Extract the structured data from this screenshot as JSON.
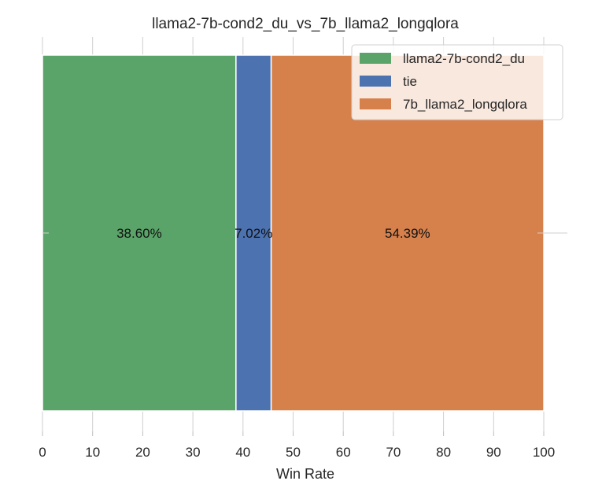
{
  "chart_data": {
    "type": "bar",
    "orientation": "horizontal-stacked",
    "title": "llama2-7b-cond2_du_vs_7b_llama2_longqlora",
    "xlabel": "Win Rate",
    "ylabel": "",
    "xlim": [
      0,
      100
    ],
    "xticks": [
      "0",
      "10",
      "20",
      "30",
      "40",
      "50",
      "60",
      "70",
      "80",
      "90",
      "100"
    ],
    "grid": true,
    "legend_position": "top-right",
    "series": [
      {
        "name": "llama2-7b-cond2_du",
        "value": 38.6,
        "label": "38.60%",
        "color": "#5aa469"
      },
      {
        "name": "tie",
        "value": 7.02,
        "label": "7.02%",
        "color": "#4c72b0"
      },
      {
        "name": "7b_llama2_longqlora",
        "value": 54.39,
        "label": "54.39%",
        "color": "#d6804c"
      }
    ]
  }
}
